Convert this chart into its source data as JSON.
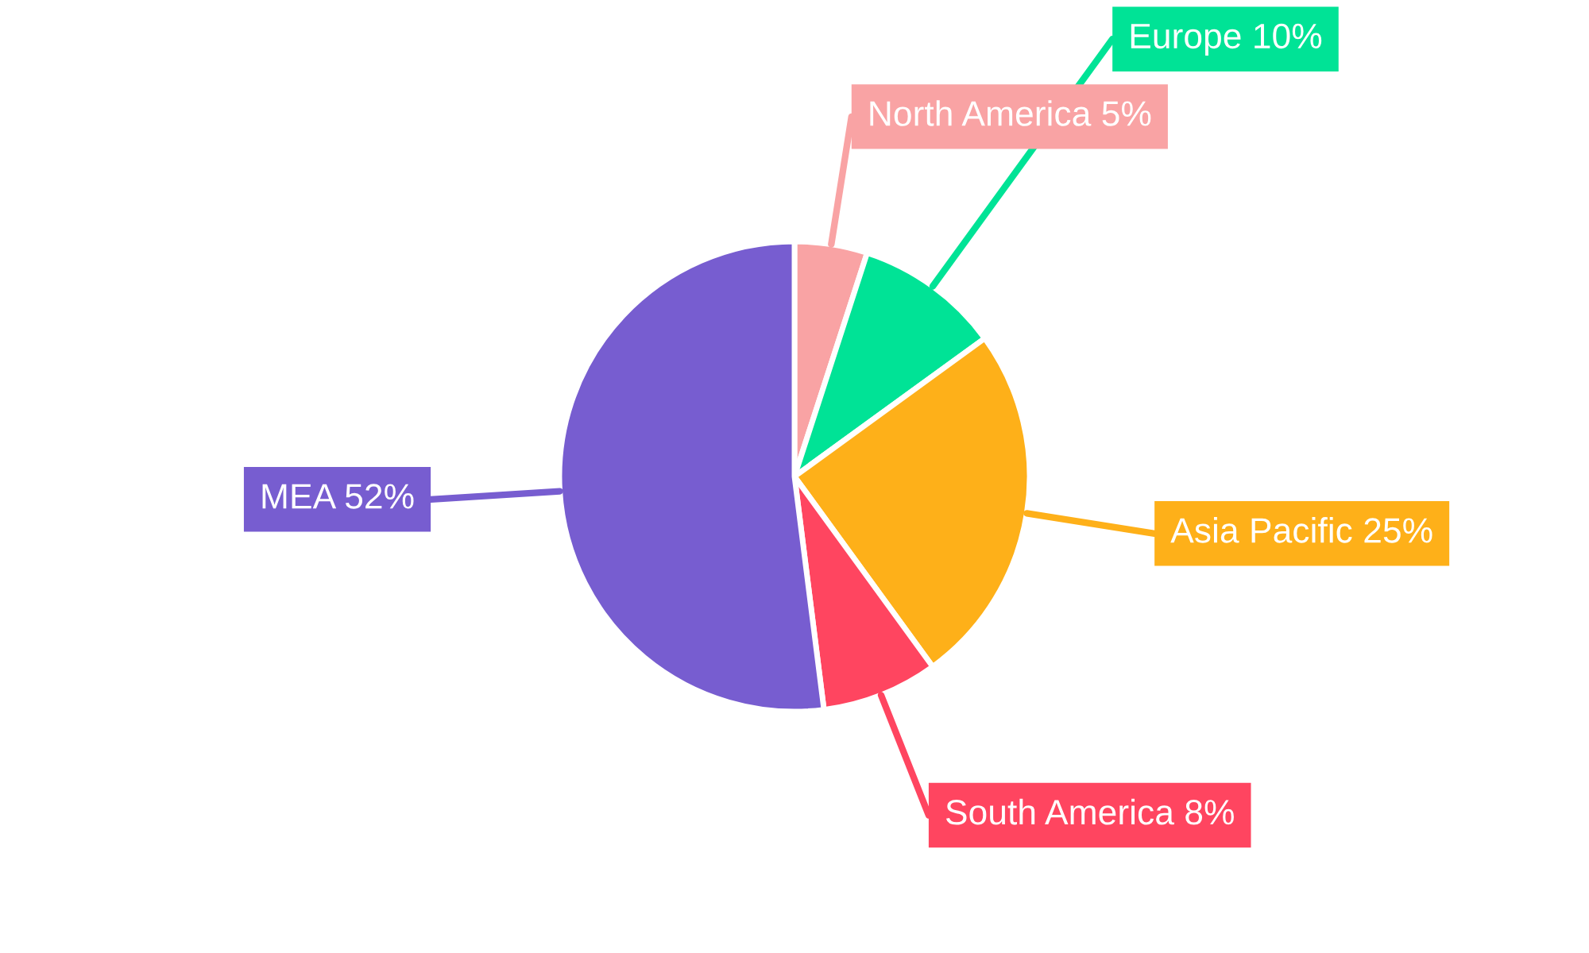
{
  "chart_data": {
    "type": "pie",
    "categories": [
      "North America",
      "Europe",
      "Asia Pacific",
      "South America",
      "MEA"
    ],
    "values": [
      5,
      10,
      25,
      8,
      52
    ],
    "colors": [
      "#f9a3a4",
      "#00e396",
      "#feb019",
      "#ff4560",
      "#775dd0"
    ],
    "value_labels": [
      "5%",
      "10%",
      "25%",
      "8%",
      "52%"
    ]
  }
}
